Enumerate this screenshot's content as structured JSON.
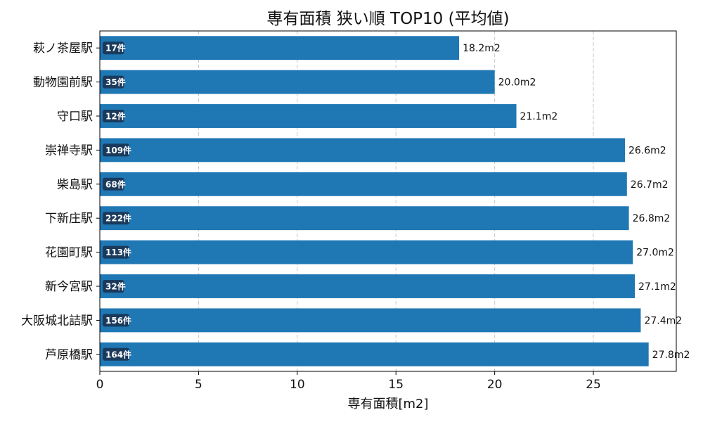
{
  "chart_data": {
    "type": "bar",
    "orientation": "horizontal",
    "title": "専有面積 狭い順 TOP10 (平均値)",
    "xlabel": "専有面積[m2]",
    "ylabel": "",
    "xlim": [
      0,
      29.2
    ],
    "xticks": [
      0,
      5,
      10,
      15,
      20,
      25
    ],
    "grid": "x-dashed",
    "bar_color": "#1f77b4",
    "badge_color": "#1a3a5c",
    "value_unit": "m2",
    "count_unit": "件",
    "categories": [
      "萩ノ茶屋駅",
      "動物園前駅",
      "守口駅",
      "崇禅寺駅",
      "柴島駅",
      "下新庄駅",
      "花園町駅",
      "新今宮駅",
      "大阪城北詰駅",
      "芦原橋駅"
    ],
    "values": [
      18.2,
      20.0,
      21.1,
      26.6,
      26.7,
      26.8,
      27.0,
      27.1,
      27.4,
      27.8
    ],
    "value_labels": [
      "18.2m2",
      "20.0m2",
      "21.1m2",
      "26.6m2",
      "26.7m2",
      "26.8m2",
      "27.0m2",
      "27.1m2",
      "27.4m2",
      "27.8m2"
    ],
    "counts": [
      "17件",
      "35件",
      "12件",
      "109件",
      "68件",
      "222件",
      "113件",
      "32件",
      "156件",
      "164件"
    ]
  }
}
